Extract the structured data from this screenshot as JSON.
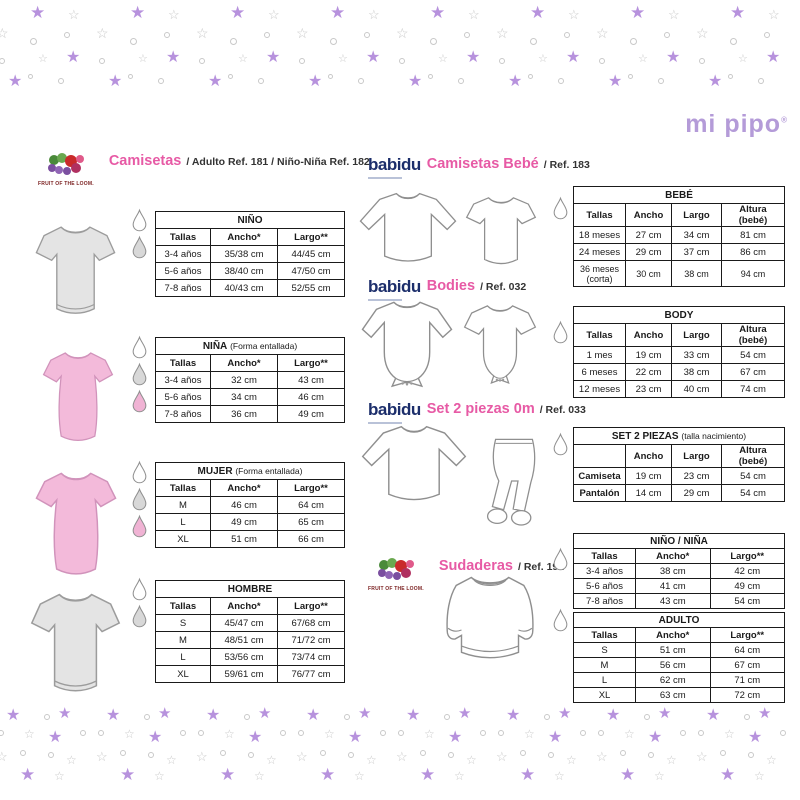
{
  "logo": {
    "text": "mi pipo",
    "registered": "®"
  },
  "headers": {
    "camisetas": {
      "brand": "FRUIT OF THE LOOM.",
      "title": "Camisetas",
      "subtitle": "/ Adulto Ref. 181 / Niño-Niña Ref. 182"
    },
    "camisetas_bebe": {
      "brand": "babidu",
      "title": "Camisetas Bebé",
      "subtitle": "/ Ref. 183"
    },
    "bodies": {
      "brand": "babidu",
      "title": "Bodies",
      "subtitle": "/ Ref. 032"
    },
    "set2piezas": {
      "brand": "babidu",
      "title": "Set 2 piezas 0m",
      "subtitle": "/ Ref. 033"
    },
    "sudaderas": {
      "brand": "FRUIT OF THE LOOM.",
      "title": "Sudaderas",
      "subtitle": "/ Ref. 192"
    }
  },
  "tables": {
    "nino": {
      "title": "NIÑO",
      "note": "",
      "columns": [
        "Tallas",
        "Ancho*",
        "Largo**"
      ],
      "rows": [
        [
          "3-4 años",
          "35/38 cm",
          "44/45 cm"
        ],
        [
          "5-6 años",
          "38/40 cm",
          "47/50 cm"
        ],
        [
          "7-8 años",
          "40/43 cm",
          "52/55 cm"
        ]
      ]
    },
    "nina": {
      "title": "NIÑA",
      "note": "(Forma entallada)",
      "columns": [
        "Tallas",
        "Ancho*",
        "Largo**"
      ],
      "rows": [
        [
          "3-4 años",
          "32 cm",
          "43 cm"
        ],
        [
          "5-6 años",
          "34 cm",
          "46 cm"
        ],
        [
          "7-8 años",
          "36 cm",
          "49 cm"
        ]
      ]
    },
    "mujer": {
      "title": "MUJER",
      "note": "(Forma entallada)",
      "columns": [
        "Tallas",
        "Ancho*",
        "Largo**"
      ],
      "rows": [
        [
          "M",
          "46 cm",
          "64 cm"
        ],
        [
          "L",
          "49 cm",
          "65 cm"
        ],
        [
          "XL",
          "51 cm",
          "66 cm"
        ]
      ]
    },
    "hombre": {
      "title": "HOMBRE",
      "note": "",
      "columns": [
        "Tallas",
        "Ancho*",
        "Largo**"
      ],
      "rows": [
        [
          "S",
          "45/47 cm",
          "67/68 cm"
        ],
        [
          "M",
          "48/51 cm",
          "71/72 cm"
        ],
        [
          "L",
          "53/56 cm",
          "73/74 cm"
        ],
        [
          "XL",
          "59/61 cm",
          "76/77 cm"
        ]
      ]
    },
    "bebe": {
      "title": "BEBÉ",
      "note": "",
      "columns": [
        "Tallas",
        "Ancho",
        "Largo",
        "Altura (bebé)"
      ],
      "rows": [
        [
          "18 meses",
          "27 cm",
          "34 cm",
          "81 cm"
        ],
        [
          "24 meses",
          "29 cm",
          "37 cm",
          "86 cm"
        ],
        [
          "36 meses (corta)",
          "30 cm",
          "38 cm",
          "94 cm"
        ]
      ]
    },
    "body": {
      "title": "BODY",
      "note": "",
      "columns": [
        "Tallas",
        "Ancho",
        "Largo",
        "Altura (bebé)"
      ],
      "rows": [
        [
          "1 mes",
          "19 cm",
          "33 cm",
          "54 cm"
        ],
        [
          "6 meses",
          "22 cm",
          "38 cm",
          "67 cm"
        ],
        [
          "12 meses",
          "23 cm",
          "40 cm",
          "74 cm"
        ]
      ]
    },
    "set": {
      "title": "SET 2 PIEZAS",
      "note": "(talla nacimiento)",
      "columns": [
        "",
        "Ancho",
        "Largo",
        "Altura (bebé)"
      ],
      "rows": [
        [
          "Camiseta",
          "19 cm",
          "23 cm",
          "54 cm"
        ],
        [
          "Pantalón",
          "14 cm",
          "29 cm",
          "54 cm"
        ]
      ]
    },
    "nino_nina": {
      "title": "NIÑO / NIÑA",
      "note": "",
      "columns": [
        "Tallas",
        "Ancho*",
        "Largo**"
      ],
      "rows": [
        [
          "3-4 años",
          "38 cm",
          "42 cm"
        ],
        [
          "5-6 años",
          "41 cm",
          "49 cm"
        ],
        [
          "7-8 años",
          "43 cm",
          "54 cm"
        ]
      ]
    },
    "adulto": {
      "title": "ADULTO",
      "note": "",
      "columns": [
        "Tallas",
        "Ancho*",
        "Largo**"
      ],
      "rows": [
        [
          "S",
          "51 cm",
          "64 cm"
        ],
        [
          "M",
          "56 cm",
          "67 cm"
        ],
        [
          "L",
          "62 cm",
          "71 cm"
        ],
        [
          "XL",
          "63 cm",
          "72 cm"
        ]
      ]
    }
  },
  "icons": {
    "star_filled": "★",
    "star_outline": "☆",
    "drop_colors": {
      "white": "#ffffff",
      "grey": "#d8d8d8",
      "pink": "#f0b3d4"
    },
    "star_purple": "#b792dd",
    "star_outline_color": "#c9c9c9"
  },
  "colors": {
    "accent_pink": "#e75aa5",
    "babidu_navy": "#1c2e6b",
    "mipipo_purple": "#b49bd8"
  }
}
